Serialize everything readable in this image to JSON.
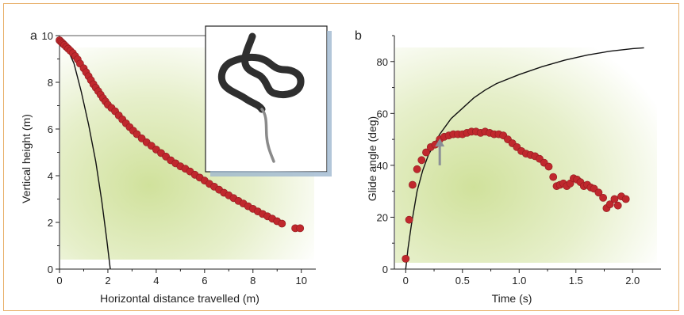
{
  "figure": {
    "border_color": "#e8b06a",
    "background_glow_color": "#c8dc8a",
    "marker_color": "#c0282d",
    "line_color": "#111111",
    "arrow_color": "#8a8f96"
  },
  "chart_data": [
    {
      "type": "scatter",
      "panel_label": "a",
      "xlabel": "Horizontal distance travelled (m)",
      "ylabel": "Vertical height (m)",
      "xlim": [
        0,
        10.6
      ],
      "ylim": [
        0,
        10
      ],
      "x_ticks": [
        0,
        2,
        4,
        6,
        8,
        10
      ],
      "y_ticks": [
        0,
        2,
        4,
        6,
        8,
        10
      ],
      "x_minor_ticks": [
        1,
        3,
        5,
        7,
        9
      ],
      "y_minor_ticks": [
        1,
        3,
        5,
        7,
        9
      ],
      "grid": false,
      "inset_image": "snake-glide-posture-icon",
      "series": [
        {
          "kind": "points",
          "color": "#c0282d",
          "points": [
            [
              0.0,
              9.8
            ],
            [
              0.05,
              9.75
            ],
            [
              0.1,
              9.7
            ],
            [
              0.15,
              9.65
            ],
            [
              0.2,
              9.6
            ],
            [
              0.28,
              9.52
            ],
            [
              0.36,
              9.44
            ],
            [
              0.45,
              9.35
            ],
            [
              0.55,
              9.25
            ],
            [
              0.65,
              9.12
            ],
            [
              0.75,
              8.98
            ],
            [
              0.85,
              8.8
            ],
            [
              1.0,
              8.6
            ],
            [
              1.1,
              8.43
            ],
            [
              1.2,
              8.26
            ],
            [
              1.3,
              8.09
            ],
            [
              1.4,
              7.92
            ],
            [
              1.5,
              7.77
            ],
            [
              1.6,
              7.62
            ],
            [
              1.7,
              7.47
            ],
            [
              1.8,
              7.32
            ],
            [
              1.9,
              7.18
            ],
            [
              2.0,
              7.04
            ],
            [
              2.15,
              6.9
            ],
            [
              2.3,
              6.76
            ],
            [
              2.45,
              6.58
            ],
            [
              2.6,
              6.41
            ],
            [
              2.75,
              6.24
            ],
            [
              2.9,
              6.08
            ],
            [
              3.05,
              5.93
            ],
            [
              3.2,
              5.78
            ],
            [
              3.4,
              5.6
            ],
            [
              3.6,
              5.43
            ],
            [
              3.8,
              5.28
            ],
            [
              4.0,
              5.12
            ],
            [
              4.2,
              4.97
            ],
            [
              4.4,
              4.82
            ],
            [
              4.6,
              4.66
            ],
            [
              4.8,
              4.53
            ],
            [
              5.0,
              4.4
            ],
            [
              5.2,
              4.3
            ],
            [
              5.4,
              4.18
            ],
            [
              5.6,
              4.04
            ],
            [
              5.8,
              3.92
            ],
            [
              6.0,
              3.79
            ],
            [
              6.2,
              3.65
            ],
            [
              6.4,
              3.53
            ],
            [
              6.6,
              3.4
            ],
            [
              6.8,
              3.27
            ],
            [
              7.0,
              3.16
            ],
            [
              7.2,
              3.04
            ],
            [
              7.4,
              2.92
            ],
            [
              7.6,
              2.81
            ],
            [
              7.8,
              2.69
            ],
            [
              8.0,
              2.58
            ],
            [
              8.2,
              2.47
            ],
            [
              8.4,
              2.36
            ],
            [
              8.6,
              2.26
            ],
            [
              8.8,
              2.16
            ],
            [
              9.0,
              2.05
            ],
            [
              9.2,
              1.95
            ],
            [
              9.75,
              1.75
            ],
            [
              9.95,
              1.75
            ]
          ]
        },
        {
          "kind": "line",
          "color": "#111111",
          "points": [
            [
              0.0,
              9.8
            ],
            [
              0.3,
              9.5
            ],
            [
              0.6,
              8.8
            ],
            [
              0.9,
              7.6
            ],
            [
              1.2,
              6.2
            ],
            [
              1.5,
              4.6
            ],
            [
              1.75,
              2.9
            ],
            [
              1.95,
              1.3
            ],
            [
              2.1,
              0.0
            ]
          ]
        }
      ]
    },
    {
      "type": "scatter",
      "panel_label": "b",
      "xlabel": "Time (s)",
      "ylabel": "Glide angle (deg)",
      "xlim": [
        -0.1,
        2.25
      ],
      "ylim": [
        0,
        90
      ],
      "x_ticks": [
        0,
        0.5,
        1.0,
        1.5,
        2.0
      ],
      "x_tick_labels": [
        "0",
        "0.5",
        "1.0",
        "1.5",
        "2.0"
      ],
      "y_ticks": [
        0,
        20,
        40,
        60,
        80
      ],
      "x_minor_ticks": [
        0.25,
        0.75,
        1.25,
        1.75
      ],
      "y_minor_ticks": [
        10,
        30,
        50,
        70,
        90
      ],
      "grid": false,
      "annotation": {
        "type": "arrow-up",
        "x": 0.3,
        "y_from": 40,
        "y_to": 50
      },
      "series": [
        {
          "kind": "points",
          "color": "#c0282d",
          "points": [
            [
              0.0,
              4
            ],
            [
              0.03,
              19
            ],
            [
              0.06,
              32.5
            ],
            [
              0.1,
              38.5
            ],
            [
              0.14,
              42
            ],
            [
              0.18,
              45
            ],
            [
              0.22,
              47
            ],
            [
              0.26,
              48
            ],
            [
              0.3,
              50
            ],
            [
              0.34,
              51
            ],
            [
              0.38,
              51.5
            ],
            [
              0.42,
              52
            ],
            [
              0.46,
              52
            ],
            [
              0.5,
              52
            ],
            [
              0.54,
              52.5
            ],
            [
              0.58,
              53
            ],
            [
              0.62,
              53
            ],
            [
              0.66,
              52.5
            ],
            [
              0.7,
              53
            ],
            [
              0.74,
              52.5
            ],
            [
              0.78,
              52
            ],
            [
              0.82,
              52
            ],
            [
              0.86,
              51.5
            ],
            [
              0.9,
              50
            ],
            [
              0.94,
              48.5
            ],
            [
              0.98,
              47
            ],
            [
              1.02,
              45.5
            ],
            [
              1.06,
              44.5
            ],
            [
              1.1,
              44
            ],
            [
              1.14,
              43.5
            ],
            [
              1.18,
              42.5
            ],
            [
              1.22,
              41
            ],
            [
              1.26,
              39.5
            ],
            [
              1.3,
              35.5
            ],
            [
              1.33,
              32
            ],
            [
              1.36,
              32.5
            ],
            [
              1.39,
              33
            ],
            [
              1.42,
              32
            ],
            [
              1.45,
              33
            ],
            [
              1.48,
              35
            ],
            [
              1.51,
              34.5
            ],
            [
              1.54,
              33.5
            ],
            [
              1.57,
              32
            ],
            [
              1.6,
              32.5
            ],
            [
              1.63,
              31.5
            ],
            [
              1.66,
              31
            ],
            [
              1.7,
              29.5
            ],
            [
              1.74,
              27.5
            ],
            [
              1.77,
              23.5
            ],
            [
              1.8,
              25
            ],
            [
              1.84,
              27
            ],
            [
              1.87,
              24.5
            ],
            [
              1.9,
              28
            ],
            [
              1.94,
              27
            ]
          ]
        },
        {
          "kind": "line",
          "color": "#111111",
          "points": [
            [
              0.0,
              0.0
            ],
            [
              0.02,
              8
            ],
            [
              0.05,
              17
            ],
            [
              0.1,
              30
            ],
            [
              0.15,
              38
            ],
            [
              0.2,
              44
            ],
            [
              0.3,
              52
            ],
            [
              0.4,
              58
            ],
            [
              0.5,
              62
            ],
            [
              0.6,
              66
            ],
            [
              0.7,
              69
            ],
            [
              0.8,
              71.5
            ],
            [
              1.0,
              75
            ],
            [
              1.2,
              78
            ],
            [
              1.4,
              80.5
            ],
            [
              1.6,
              82.5
            ],
            [
              1.8,
              84
            ],
            [
              2.0,
              85
            ],
            [
              2.1,
              85.3
            ]
          ]
        }
      ]
    }
  ]
}
